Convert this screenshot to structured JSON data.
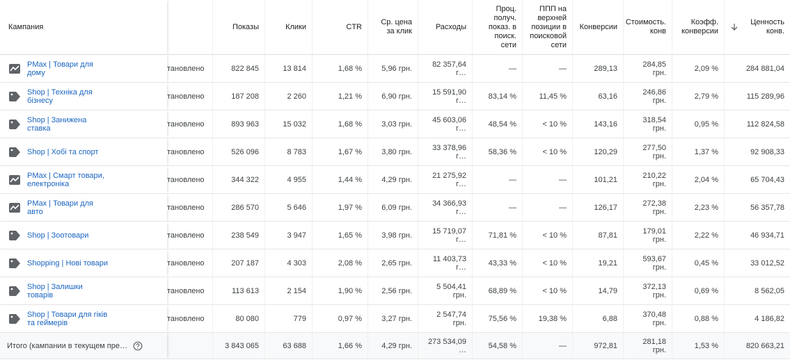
{
  "table": {
    "columns": [
      "Кампания",
      "Показы",
      "Клики",
      "CTR",
      "Ср. цена за клик",
      "Расходы",
      "Проц. получ. показ. в поиск. сети",
      "ППП на верхней позиции в поисковой сети",
      "Конверсии",
      "Стоимость. конв",
      "Коэфф. конверсии",
      "Ценность конв."
    ],
    "rows": [
      {
        "icon": "chart",
        "campaign": "PMax | Товари для дому",
        "status": "тановлено",
        "cells": [
          "822 845",
          "13 814",
          "1,68 %",
          "5,96 грн.",
          "82 357,64 г…",
          "—",
          "—",
          "289,13",
          "284,85 грн.",
          "2,09 %",
          "284 881,04"
        ]
      },
      {
        "icon": "tag",
        "campaign": "Shop | Техніка для бізнесу",
        "status": "тановлено",
        "cells": [
          "187 208",
          "2 260",
          "1,21 %",
          "6,90 грн.",
          "15 591,90 г…",
          "83,14 %",
          "11,45 %",
          "63,16",
          "246,86 грн.",
          "2,79 %",
          "115 289,96"
        ]
      },
      {
        "icon": "tag",
        "campaign": "Shop | Занижена ставка",
        "status": "тановлено",
        "cells": [
          "893 963",
          "15 032",
          "1,68 %",
          "3,03 грн.",
          "45 603,06 г…",
          "48,54 %",
          "< 10 %",
          "143,16",
          "318,54 грн.",
          "0,95 %",
          "112 824,58"
        ]
      },
      {
        "icon": "tag",
        "campaign": "Shop | Хобі та спорт",
        "status": "тановлено",
        "cells": [
          "526 096",
          "8 783",
          "1,67 %",
          "3,80 грн.",
          "33 378,96 г…",
          "58,36 %",
          "< 10 %",
          "120,29",
          "277,50 грн.",
          "1,37 %",
          "92 908,33"
        ]
      },
      {
        "icon": "chart",
        "campaign": "PMax | Смарт товари, електроніка",
        "status": "тановлено",
        "cells": [
          "344 322",
          "4 955",
          "1,44 %",
          "4,29 грн.",
          "21 275,92 г…",
          "—",
          "—",
          "101,21",
          "210,22 грн.",
          "2,04 %",
          "65 704,43"
        ]
      },
      {
        "icon": "chart",
        "campaign": "PMax | Товари для авто",
        "status": "тановлено",
        "cells": [
          "286 570",
          "5 646",
          "1,97 %",
          "6,09 грн.",
          "34 366,93 г…",
          "—",
          "—",
          "126,17",
          "272,38 грн.",
          "2,23 %",
          "56 357,78"
        ]
      },
      {
        "icon": "tag",
        "campaign": "Shop | Зоотовари",
        "status": "тановлено",
        "cells": [
          "238 549",
          "3 947",
          "1,65 %",
          "3,98 грн.",
          "15 719,07 г…",
          "71,81 %",
          "< 10 %",
          "87,81",
          "179,01 грн.",
          "2,22 %",
          "46 934,71"
        ]
      },
      {
        "icon": "tag",
        "campaign": "Shopping | Нові товари",
        "status": "тановлено",
        "cells": [
          "207 187",
          "4 303",
          "2,08 %",
          "2,65 грн.",
          "11 403,73 г…",
          "43,33 %",
          "< 10 %",
          "19,21",
          "593,67 грн.",
          "0,45 %",
          "33 012,52"
        ]
      },
      {
        "icon": "tag",
        "campaign": "Shop | Залишки товарів",
        "status": "тановлено",
        "cells": [
          "113 613",
          "2 154",
          "1,90 %",
          "2,56 грн.",
          "5 504,41 грн.",
          "68,89 %",
          "< 10 %",
          "14,79",
          "372,13 грн.",
          "0,69 %",
          "8 562,05"
        ]
      },
      {
        "icon": "tag",
        "campaign": "Shop | Товари для гіків та геймерів",
        "status": "тановлено",
        "cells": [
          "80 080",
          "779",
          "0,97 %",
          "3,27 грн.",
          "2 547,74 грн.",
          "75,56 %",
          "19,38 %",
          "6,88",
          "370,48 грн.",
          "0,88 %",
          "4 186,82"
        ]
      }
    ],
    "total": {
      "label": "Итого (кампании в текущем пре…",
      "cells": [
        "3 843 065",
        "63 688",
        "1,66 %",
        "4,29 грн.",
        "273 534,09 …",
        "54,58 %",
        "—",
        "972,81",
        "281,18 грн.",
        "1,53 %",
        "820 663,21"
      ]
    }
  }
}
